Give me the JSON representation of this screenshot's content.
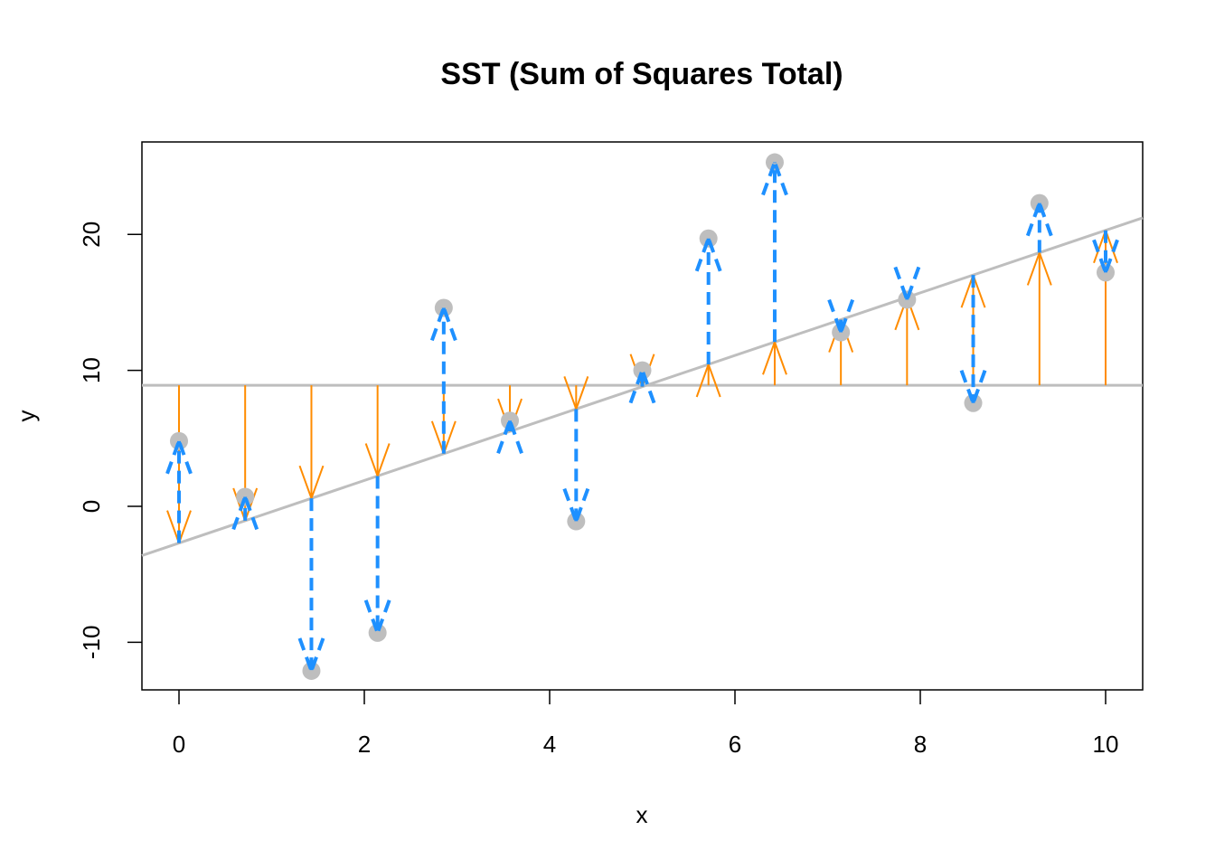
{
  "chart_data": {
    "type": "scatter",
    "title": "SST (Sum of Squares Total)",
    "xlabel": "x",
    "ylabel": "y",
    "xlim": [
      -0.4,
      10.4
    ],
    "ylim": [
      -13.5,
      26.8
    ],
    "x_ticks": [
      0,
      2,
      4,
      6,
      8,
      10
    ],
    "y_ticks": [
      -10,
      0,
      10,
      20
    ],
    "grid": false,
    "mean_y": 8.9,
    "regression_line": {
      "intercept": -2.7,
      "slope": 2.3
    },
    "points": {
      "x": [
        0,
        0.714,
        1.429,
        2.143,
        2.857,
        3.571,
        4.286,
        5.0,
        5.714,
        6.429,
        7.143,
        7.857,
        8.571,
        9.286,
        10.0
      ],
      "y": [
        4.8,
        0.7,
        -12.1,
        -9.3,
        14.6,
        6.3,
        -1.1,
        10.0,
        19.7,
        25.3,
        12.8,
        15.2,
        7.6,
        22.3,
        17.2
      ]
    },
    "colors": {
      "points": "#bebebe",
      "mean_line": "#bebebe",
      "regression_line": "#bebebe",
      "explained_arrows": "#ff8c00",
      "residual_arrows": "#1e90ff",
      "frame": "#000000"
    }
  }
}
